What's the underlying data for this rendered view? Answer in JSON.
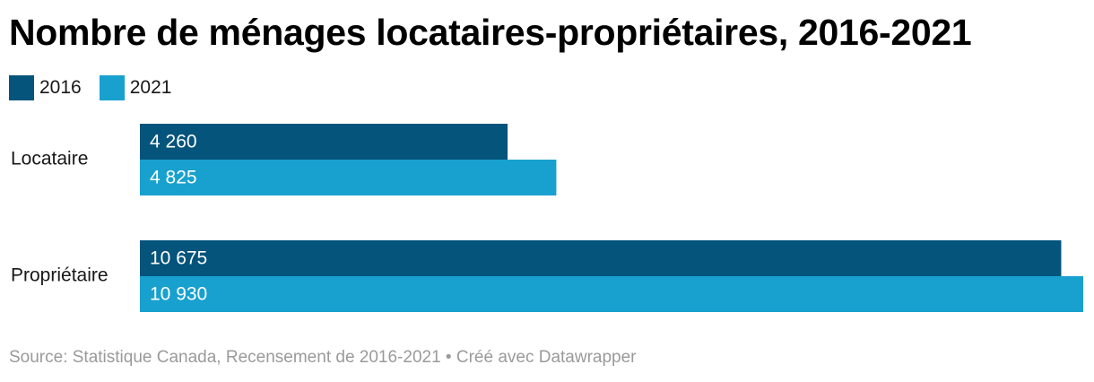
{
  "title": "Nombre de ménages locataires-propriétaires, 2016-2021",
  "source": "Source: Statistique Canada, Recensement de 2016-2021 • Créé avec Datawrapper",
  "colors": {
    "series_2016": "#04547c",
    "series_2021": "#18a1cf",
    "bar_label": "#ffffff",
    "category_label": "#181818"
  },
  "chart_data": {
    "type": "bar",
    "orientation": "horizontal",
    "categories": [
      "Locataire",
      "Propriétaire"
    ],
    "series": [
      {
        "name": "2016",
        "values": [
          4260,
          10675
        ],
        "labels": [
          "4 260",
          "10 675"
        ],
        "color": "#04547c"
      },
      {
        "name": "2021",
        "values": [
          4825,
          10930
        ],
        "labels": [
          "4 825",
          "10 930"
        ],
        "color": "#18a1cf"
      }
    ],
    "title": "Nombre de ménages locataires-propriétaires, 2016-2021",
    "xlabel": "",
    "ylabel": "",
    "xlim": [
      0,
      10930
    ],
    "grid": false,
    "legend": "top-left"
  }
}
